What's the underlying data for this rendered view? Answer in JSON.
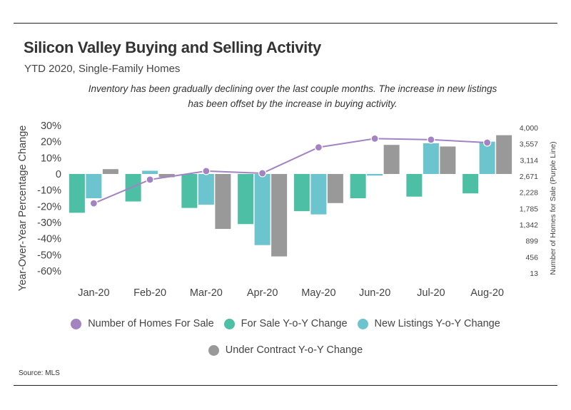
{
  "title": "Silicon Valley Buying and Selling Activity",
  "subtitle": "YTD 2020, Single-Family Homes",
  "note": "Inventory has been gradually declining over the last couple months. The increase in new listings has been offset by the increase in buying activity.",
  "source": "Source:  MLS",
  "colors": {
    "for_sale": "#4dbfa4",
    "new_listings": "#6cc4cf",
    "under_contract": "#999999",
    "homes_line": "#a383c2"
  },
  "chart_data": {
    "type": "bar",
    "categories": [
      "Jan-20",
      "Feb-20",
      "Mar-20",
      "Apr-20",
      "May-20",
      "Jun-20",
      "Jul-20",
      "Aug-20"
    ],
    "ylabel": "Year-Over-Year Percentage Change",
    "ylim": [
      -60,
      30
    ],
    "y_ticks": [
      "30%",
      "20%",
      "10%",
      "0",
      "-10%",
      "-20%",
      "-30%",
      "-40%",
      "-50%",
      "-60%"
    ],
    "y_tick_values": [
      30,
      20,
      10,
      0,
      -10,
      -20,
      -30,
      -40,
      -50,
      -60
    ],
    "y2label": "Number of Homes for Sale (Purple Line)",
    "y2lim": [
      13,
      4000
    ],
    "y2_ticks": [
      "4,000",
      "3,557",
      "3,114",
      "2,671",
      "2,228",
      "1,785",
      "1,342",
      "899",
      "456",
      "13"
    ],
    "y2_tick_values": [
      4000,
      3557,
      3114,
      2671,
      2228,
      1785,
      1342,
      899,
      456,
      13
    ],
    "series": [
      {
        "name": "For Sale Y-o-Y Change",
        "kind": "bar",
        "axis": "left",
        "values": [
          -24,
          -17,
          -21,
          -31,
          -23,
          -15,
          -14,
          -12
        ]
      },
      {
        "name": "New Listings Y-o-Y Change",
        "kind": "bar",
        "axis": "left",
        "values": [
          -15,
          2,
          -19,
          -44,
          -25,
          -1,
          19,
          20
        ]
      },
      {
        "name": "Under Contract Y-o-Y Change",
        "kind": "bar",
        "axis": "left",
        "values": [
          3,
          -2,
          -34,
          -51,
          -18,
          18,
          17,
          24
        ]
      },
      {
        "name": "Number of Homes For Sale",
        "kind": "line",
        "axis": "right",
        "values": [
          1925,
          2575,
          2810,
          2750,
          3460,
          3700,
          3670,
          3590
        ]
      }
    ],
    "legend_position": "bottom",
    "grid": false
  }
}
